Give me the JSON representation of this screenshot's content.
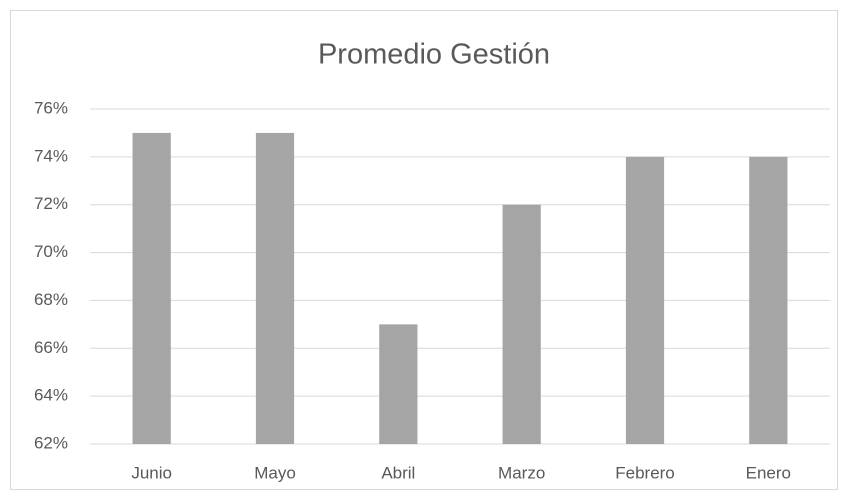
{
  "chart_data": {
    "type": "bar",
    "title": "Promedio Gestión",
    "categories": [
      "Junio",
      "Mayo",
      "Abril",
      "Marzo",
      "Febrero",
      "Enero"
    ],
    "values": [
      75,
      75,
      67,
      72,
      74,
      74
    ],
    "color": "#a5a5a5",
    "ylim": [
      62,
      76
    ],
    "yticks": [
      {
        "value": 62,
        "label": "62%"
      },
      {
        "value": 64,
        "label": "64%"
      },
      {
        "value": 66,
        "label": "66%"
      },
      {
        "value": 68,
        "label": "68%"
      },
      {
        "value": 70,
        "label": "70%"
      },
      {
        "value": 72,
        "label": "72%"
      },
      {
        "value": 74,
        "label": "74%"
      },
      {
        "value": 76,
        "label": "76%"
      }
    ],
    "grid": true
  }
}
